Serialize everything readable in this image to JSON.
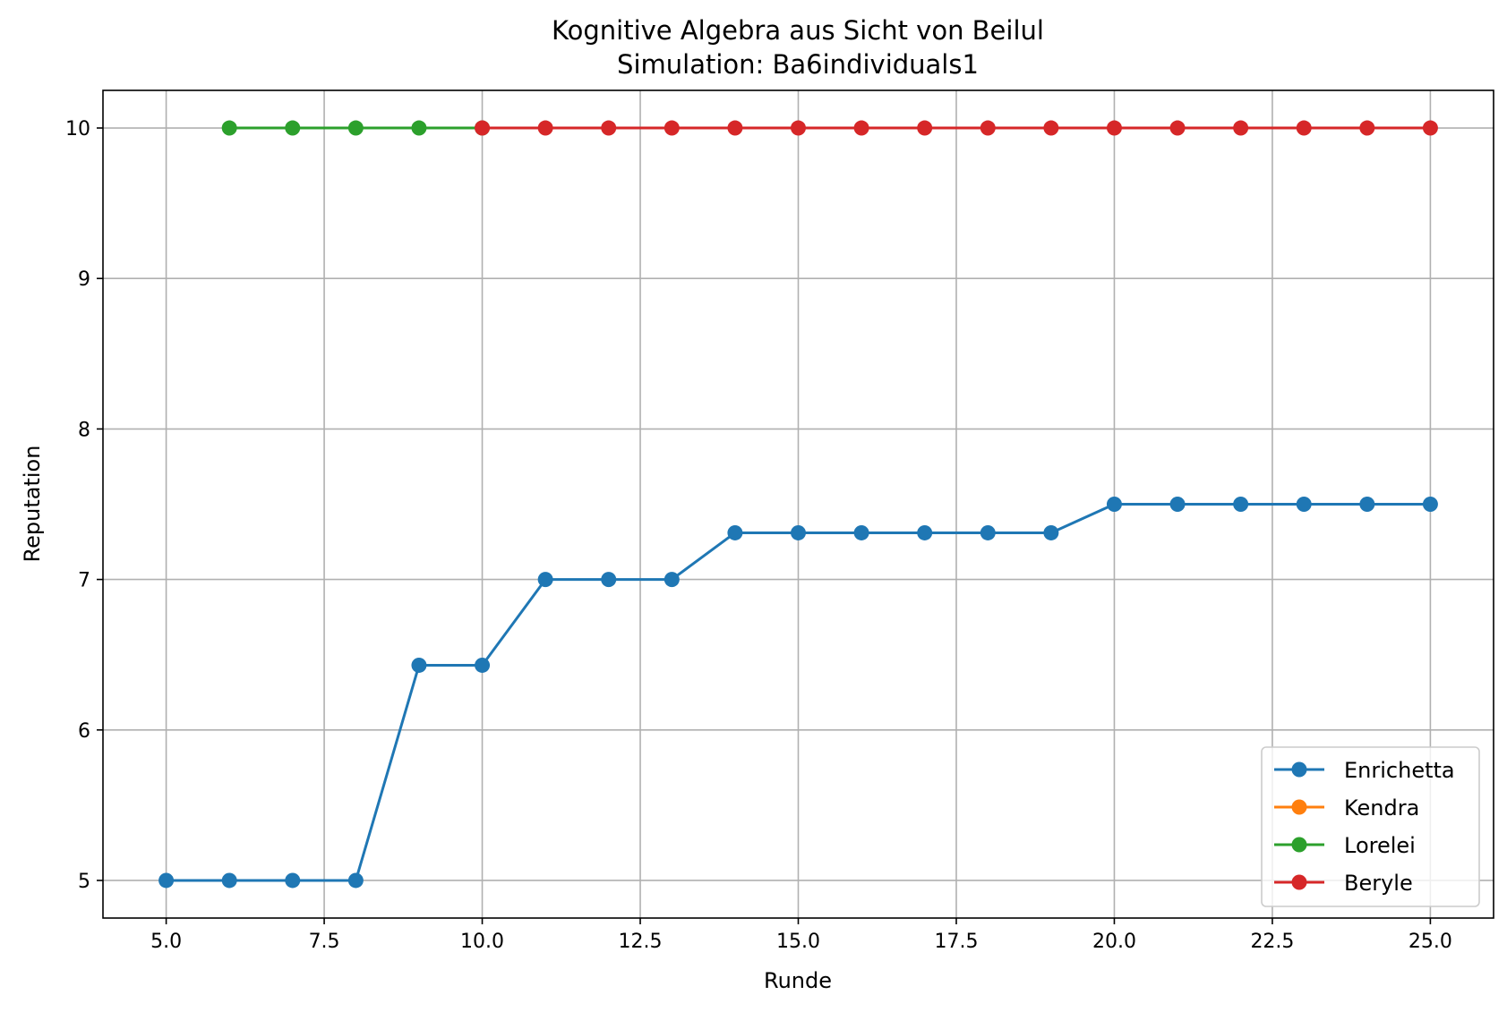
{
  "chart_data": {
    "type": "line",
    "title": "Kognitive Algebra aus Sicht von Beilul",
    "subtitle": "Simulation: Ba6individuals1",
    "xlabel": "Runde",
    "ylabel": "Reputation",
    "xlim": [
      4.0,
      26.0
    ],
    "ylim": [
      4.75,
      10.25
    ],
    "x_ticks": [
      5.0,
      7.5,
      10.0,
      12.5,
      15.0,
      17.5,
      20.0,
      22.5,
      25.0
    ],
    "x_tick_labels": [
      "5.0",
      "7.5",
      "10.0",
      "12.5",
      "15.0",
      "17.5",
      "20.0",
      "22.5",
      "25.0"
    ],
    "y_ticks": [
      5,
      6,
      7,
      8,
      9,
      10
    ],
    "y_tick_labels": [
      "5",
      "6",
      "7",
      "8",
      "9",
      "10"
    ],
    "grid": true,
    "legend_position": "lower-right",
    "series": [
      {
        "name": "Enrichetta",
        "color": "#1f77b4",
        "x": [
          5,
          6,
          7,
          8,
          9,
          10,
          11,
          12,
          13,
          14,
          15,
          16,
          17,
          18,
          19,
          20,
          21,
          22,
          23,
          24,
          25
        ],
        "values": [
          5.0,
          5.0,
          5.0,
          5.0,
          6.43,
          6.43,
          7.0,
          7.0,
          7.0,
          7.31,
          7.31,
          7.31,
          7.31,
          7.31,
          7.31,
          7.5,
          7.5,
          7.5,
          7.5,
          7.5,
          7.5
        ]
      },
      {
        "name": "Kendra",
        "color": "#ff7f0e",
        "x": [],
        "values": []
      },
      {
        "name": "Lorelei",
        "color": "#2ca02c",
        "x": [
          6,
          7,
          8,
          9,
          10
        ],
        "values": [
          10,
          10,
          10,
          10,
          10
        ]
      },
      {
        "name": "Beryle",
        "color": "#d62728",
        "x": [
          10,
          11,
          12,
          13,
          14,
          15,
          16,
          17,
          18,
          19,
          20,
          21,
          22,
          23,
          24,
          25
        ],
        "values": [
          10,
          10,
          10,
          10,
          10,
          10,
          10,
          10,
          10,
          10,
          10,
          10,
          10,
          10,
          10,
          10
        ]
      }
    ]
  }
}
